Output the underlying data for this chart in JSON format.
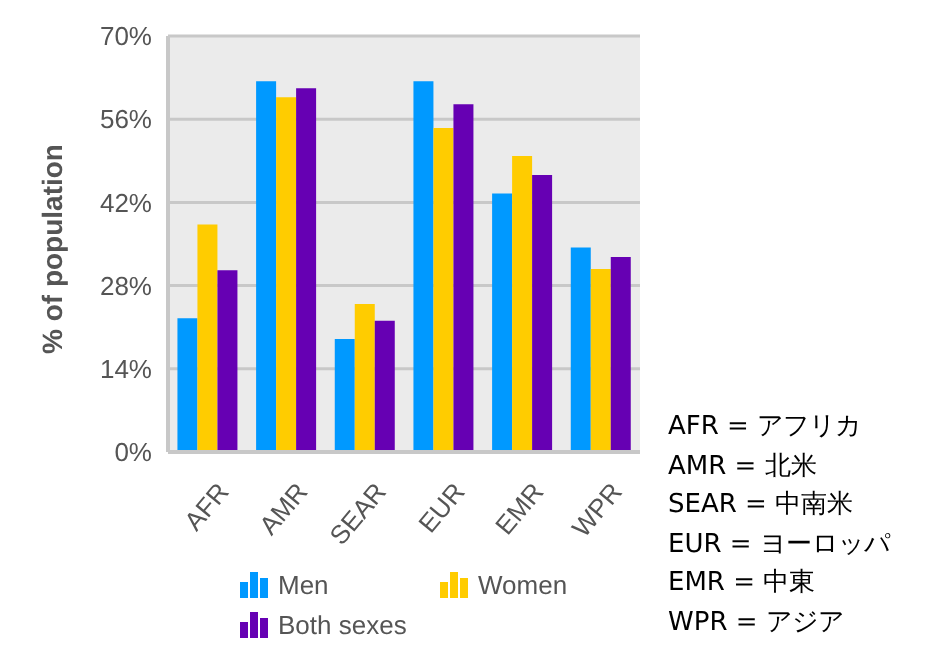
{
  "chart_data": {
    "type": "bar",
    "ylabel": "% of population",
    "categories": [
      "AFR",
      "AMR",
      "SEAR",
      "EUR",
      "EMR",
      "WPR"
    ],
    "series": [
      {
        "name": "Men",
        "color": "#0099ff",
        "values": [
          22.5,
          62.4,
          19.0,
          62.4,
          43.5,
          34.4
        ]
      },
      {
        "name": "Women",
        "color": "#ffcc00",
        "values": [
          38.3,
          59.7,
          24.9,
          54.5,
          49.8,
          30.8
        ]
      },
      {
        "name": "Both sexes",
        "color": "#6600b3",
        "values": [
          30.6,
          61.2,
          22.1,
          58.5,
          46.6,
          32.8
        ]
      }
    ],
    "ylim": [
      0,
      70
    ],
    "yticks": [
      {
        "value": 0,
        "label": "0%"
      },
      {
        "value": 14,
        "label": "14%"
      },
      {
        "value": 28,
        "label": "28%"
      },
      {
        "value": 42,
        "label": "42%"
      },
      {
        "value": 56,
        "label": "56%"
      },
      {
        "value": 70,
        "label": "70%"
      }
    ],
    "grid": "y",
    "legend": "bottom",
    "annotations": [
      "AFR = アフリカ",
      "AMR = 北米",
      "SEAR = 中南米",
      "EUR = ヨーロッパ",
      "EMR = 中東",
      "WPR = アジア"
    ]
  }
}
